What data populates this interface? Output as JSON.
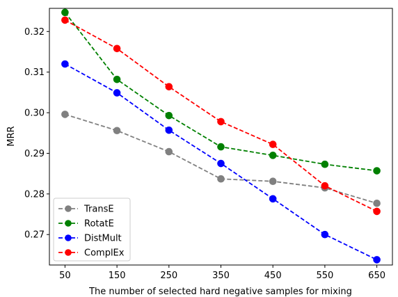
{
  "chart_data": {
    "type": "line",
    "title": "",
    "xlabel": "The number of selected hard negative samples for mixing",
    "ylabel": "MRR",
    "x": [
      50,
      150,
      250,
      350,
      450,
      550,
      650
    ],
    "x_tick_labels": [
      "50",
      "150",
      "250",
      "350",
      "450",
      "550",
      "650"
    ],
    "y_ticks": [
      0.27,
      0.28,
      0.29,
      0.3,
      0.31,
      0.32
    ],
    "y_tick_labels": [
      "0.27",
      "0.28",
      "0.29",
      "0.30",
      "0.31",
      "0.32"
    ],
    "xlim": [
      20,
      680
    ],
    "ylim": [
      0.2625,
      0.3257
    ],
    "grid": false,
    "legend_position": "lower-left",
    "series": [
      {
        "name": "TransE",
        "color": "#808080",
        "values": [
          0.2996,
          0.2956,
          0.2904,
          0.2837,
          0.2831,
          0.2815,
          0.2777
        ]
      },
      {
        "name": "RotatE",
        "color": "#008000",
        "values": [
          0.3247,
          0.3082,
          0.2993,
          0.2916,
          0.2895,
          0.2873,
          0.2857
        ]
      },
      {
        "name": "DistMult",
        "color": "#0000ff",
        "values": [
          0.312,
          0.3049,
          0.2957,
          0.2875,
          0.2788,
          0.27,
          0.2638
        ]
      },
      {
        "name": "ComplEx",
        "color": "#ff0000",
        "values": [
          0.3228,
          0.3158,
          0.3064,
          0.2978,
          0.2922,
          0.282,
          0.2757
        ]
      }
    ]
  }
}
